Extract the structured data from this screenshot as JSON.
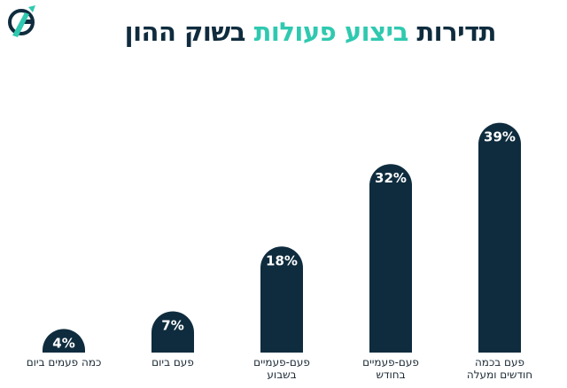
{
  "header": {
    "title_part1": "תדירות",
    "title_accent": "ביצוע פעולות",
    "title_part2": "בשוק ההון",
    "colors": {
      "dark": "#0f2c3e",
      "accent": "#2fc9b0"
    }
  },
  "logo": {
    "icon": "brand-logo-icon",
    "text": "G"
  },
  "chart_data": {
    "type": "bar",
    "title": "תדירות ביצוע פעולות בשוק ההון",
    "categories": [
      [
        "פעם בכמה",
        "חודשים ומעלה"
      ],
      [
        "פעם-פעמיים",
        "בחודש"
      ],
      [
        "פעם-פעמיים",
        "בשבוע"
      ],
      [
        "פעם ביום"
      ],
      [
        "כמה פעמים ביום"
      ]
    ],
    "values": [
      39,
      32,
      18,
      7,
      4
    ],
    "value_labels": [
      "39%",
      "32%",
      "18%",
      "7%",
      "4%"
    ],
    "unit": "%",
    "ylim": [
      0,
      40
    ],
    "grid": false,
    "legend": "none",
    "bar_color": "#0f2c3e",
    "orientation": "right-to-left"
  }
}
